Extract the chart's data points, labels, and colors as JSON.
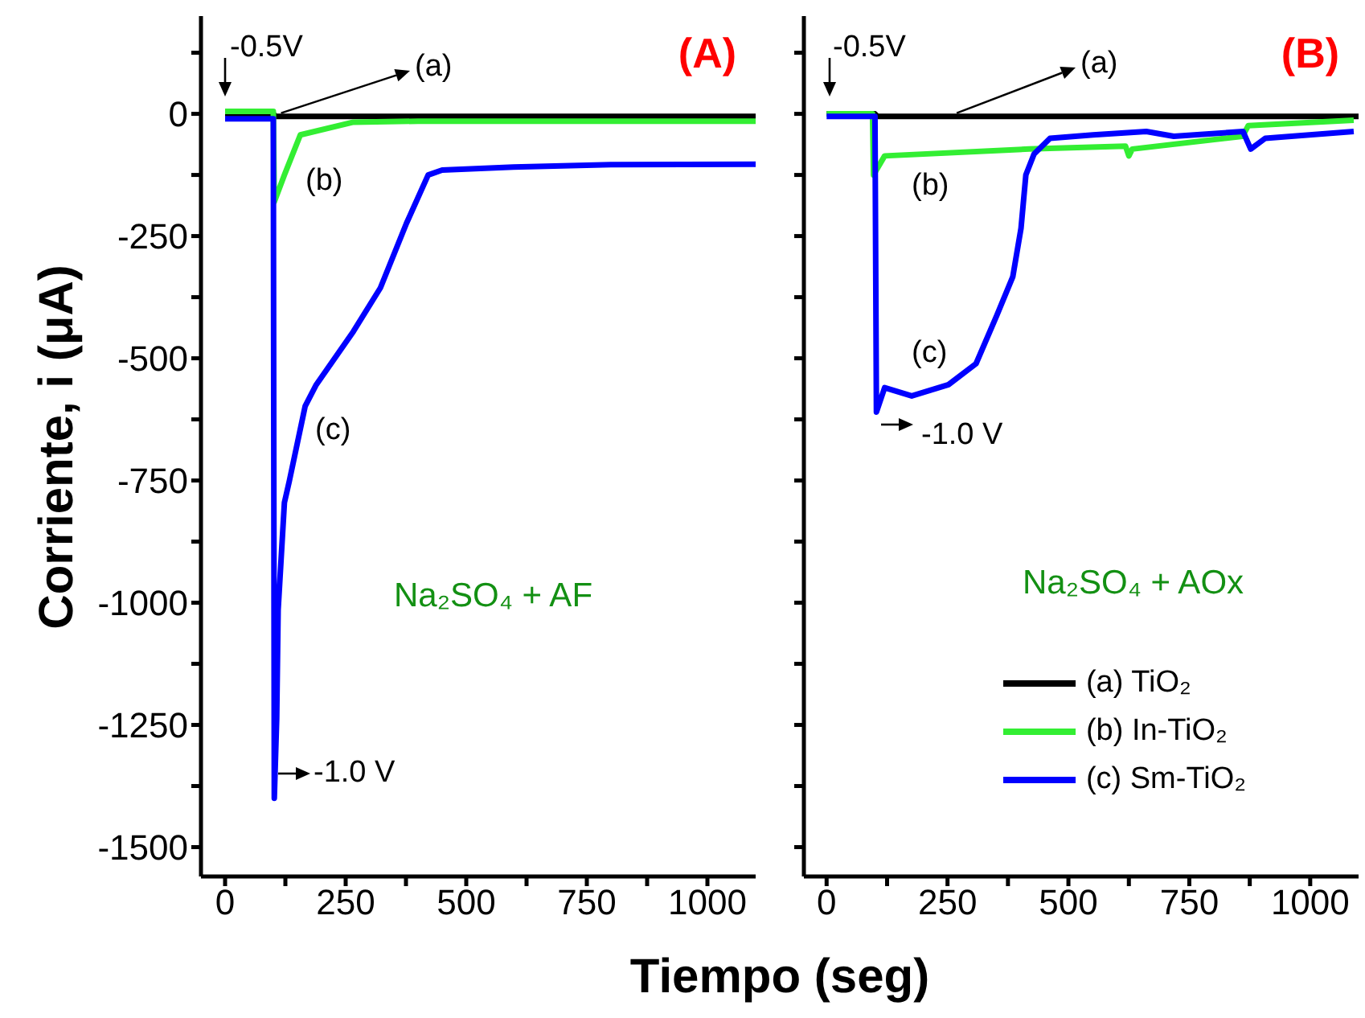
{
  "chart_data": [
    {
      "type": "line",
      "title": "(A)",
      "ylabel": "Corriente, i (μA)",
      "xlabel": "Tiempo (seg)",
      "xlim": [
        -50,
        1100
      ],
      "xticks": [
        0,
        {
          "value": 125,
          "label": null
        },
        250,
        {
          "value": 375,
          "label": null
        },
        500,
        {
          "value": 625,
          "label": null
        },
        750,
        {
          "value": 875,
          "label": null
        },
        1000
      ],
      "ylim": [
        -1560,
        200
      ],
      "yticks": [
        -1500,
        {
          "value": -1375,
          "label": null
        },
        -1250,
        {
          "value": -1125,
          "label": null
        },
        -1000,
        {
          "value": -875,
          "label": null
        },
        -750,
        {
          "value": -625,
          "label": null
        },
        -500,
        {
          "value": -375,
          "label": null
        },
        -250,
        {
          "value": -125,
          "label": null
        },
        0,
        {
          "value": 125,
          "label": null
        }
      ],
      "series": [
        {
          "color": "#000000",
          "x": [
            0,
            100,
            105,
            1100
          ],
          "values": [
            0,
            0,
            -5,
            -5
          ]
        },
        {
          "color": "#33ee33",
          "x": [
            0,
            100,
            102,
            123,
            156,
            266,
            400,
            1100
          ],
          "values": [
            5,
            5,
            -180,
            -125,
            -43,
            -17,
            -15,
            -15
          ]
        },
        {
          "color": "#0000ff",
          "x": [
            0,
            100,
            102,
            107,
            110,
            123,
            133,
            166,
            189,
            266,
            322,
            376,
            421,
            450,
            598,
            800,
            1100
          ],
          "values": [
            -10,
            -10,
            -1400,
            -1236,
            -1015,
            -795,
            -752,
            -598,
            -554,
            -445,
            -356,
            -224,
            -125,
            -115,
            -109,
            -104,
            -103
          ]
        }
      ],
      "annotations": [
        "-0.5V",
        {
          "text": "(a)",
          "x": 116,
          "y": -5
        },
        "(b)",
        "(c)",
        "-1.0 V",
        "Na₂SO₄ + AF"
      ]
    },
    {
      "type": "line",
      "title": "(B)",
      "tick_labels": "x",
      "legend": "bottom right",
      "xlim": [
        -47,
        1100
      ],
      "xticks": [
        0,
        {
          "value": 125,
          "label": null
        },
        250,
        {
          "value": 375,
          "label": null
        },
        500,
        {
          "value": 625,
          "label": null
        },
        750,
        {
          "value": 875,
          "label": null
        },
        1000
      ],
      "ylim": [
        -1560,
        200
      ],
      "yticks": [
        -1500,
        {
          "value": -1375,
          "label": null
        },
        -1250,
        {
          "value": -1125,
          "label": null
        },
        -1000,
        {
          "value": -875,
          "label": null
        },
        -750,
        {
          "value": -625,
          "label": null
        },
        -500,
        {
          "value": -375,
          "label": null
        },
        -250,
        {
          "value": -125,
          "label": null
        },
        0,
        {
          "value": 125,
          "label": null
        }
      ],
      "series": [
        {
          "name": "(a) TiO₂",
          "color": "#000000",
          "x": [
            0,
            100,
            105,
            1100
          ],
          "values": [
            0,
            0,
            -5,
            -5
          ]
        },
        {
          "name": "(b) In-TiO₂",
          "color": "#33ee33",
          "x": [
            0,
            95,
            97,
            120,
            419,
            618,
            625,
            632,
            860,
            872,
            1090
          ],
          "values": [
            0,
            0,
            -125,
            -86,
            -72,
            -66,
            -86,
            -72,
            -46,
            -24,
            -13
          ]
        },
        {
          "name": "(c) Sm-TiO₂",
          "color": "#0000ff",
          "x": [
            0,
            100,
            103,
            120,
            176,
            252,
            309,
            352,
            385,
            402,
            412,
            429,
            462,
            551,
            661,
            718,
            861,
            877,
            907,
            1090
          ],
          "values": [
            -5,
            -5,
            -610,
            -560,
            -577,
            -554,
            -511,
            -412,
            -333,
            -234,
            -125,
            -82,
            -50,
            -43,
            -36,
            -46,
            -36,
            -72,
            -50,
            -36
          ]
        }
      ],
      "annotations": [
        "-0.5V",
        {
          "text": "(a)",
          "x": 269,
          "y": -5
        },
        "(b)",
        "(c)",
        "-1.0 V",
        "Na₂SO₄ + AOx"
      ]
    }
  ]
}
